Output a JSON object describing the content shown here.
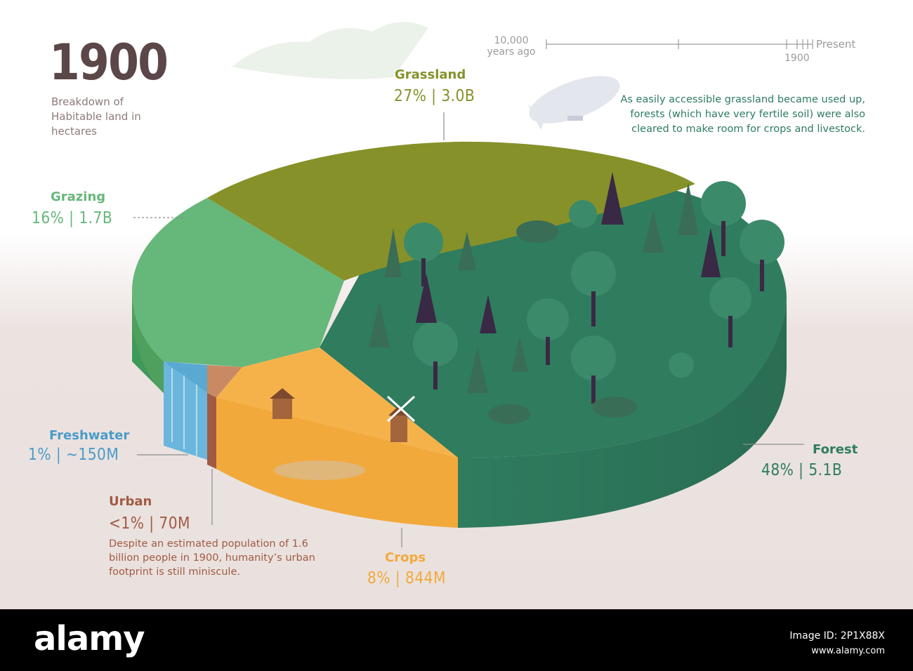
{
  "header": {
    "year": "1900",
    "subtitle": "Breakdown of Habitable land in hectares"
  },
  "timeline": {
    "start_label": "10,000 years ago",
    "end_label": "Present",
    "marker_label": "1900"
  },
  "note": "As easily accessible grassland became used up, forests (which have very fertile soil) were also cleared to make room for crops and livestock.",
  "urban_note": "Despite an estimated population of 1.6 billion people in 1900, humanity’s urban footprint is still miniscule.",
  "footer": {
    "brand": "alamy",
    "image_id": "Image ID: 2P1X88X",
    "url": "www.alamy.com"
  },
  "colors": {
    "forest": "#2f7c5f",
    "grassland": "#87912a",
    "grazing": "#66b77a",
    "crops": "#f2a93b",
    "freshwater": "#4a9bc8",
    "urban": "#a25a43",
    "year": "#5b4648"
  },
  "chart_data": {
    "type": "pie",
    "title": "1900",
    "subtitle": "Breakdown of Habitable land in hectares",
    "unit": "hectares",
    "slices": [
      {
        "name": "Forest",
        "percent_label": "48%",
        "amount_label": "5.1B",
        "value": 48,
        "color": "#2f7c5f"
      },
      {
        "name": "Grassland",
        "percent_label": "27%",
        "amount_label": "3.0B",
        "value": 27,
        "color": "#87912a"
      },
      {
        "name": "Grazing",
        "percent_label": "16%",
        "amount_label": "1.7B",
        "value": 16,
        "color": "#66b77a"
      },
      {
        "name": "Crops",
        "percent_label": "8%",
        "amount_label": "844M",
        "value": 8,
        "color": "#f2a93b"
      },
      {
        "name": "Freshwater",
        "percent_label": "1%",
        "amount_label": "~150M",
        "value": 1,
        "color": "#4a9bc8"
      },
      {
        "name": "Urban",
        "percent_label": "<1%",
        "amount_label": "70M",
        "value": 0.6,
        "color": "#a25a43"
      }
    ]
  }
}
